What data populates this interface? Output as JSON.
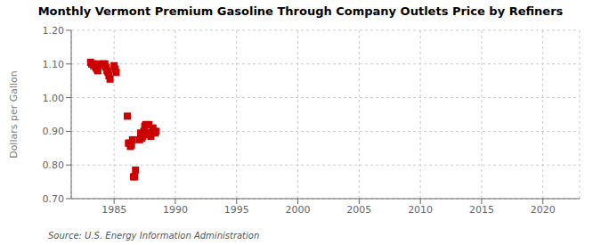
{
  "chart_data": {
    "type": "scatter",
    "title": "Monthly Vermont Premium Gasoline Through Company Outlets Price by Refiners",
    "ylabel": "Dollars per Gallon",
    "annotation": "Source: U.S. Energy Information Administration",
    "x": [
      1983.08,
      1983.17,
      1983.25,
      1983.33,
      1983.42,
      1983.5,
      1983.58,
      1983.67,
      1983.75,
      1983.83,
      1984.08,
      1984.17,
      1984.25,
      1984.33,
      1984.42,
      1984.5,
      1984.58,
      1984.67,
      1985.0,
      1985.08,
      1985.17,
      1986.08,
      1986.17,
      1986.25,
      1986.33,
      1986.42,
      1986.5,
      1986.58,
      1986.67,
      1986.75,
      1987.08,
      1987.17,
      1987.25,
      1987.33,
      1987.42,
      1987.5,
      1987.58,
      1987.67,
      1987.75,
      1987.83,
      1988.0,
      1988.08,
      1988.17,
      1988.25,
      1988.33,
      1988.42
    ],
    "values": [
      1.105,
      1.1,
      1.1,
      1.095,
      1.1,
      1.09,
      1.085,
      1.08,
      1.1,
      1.095,
      1.1,
      1.1,
      1.1,
      1.09,
      1.08,
      1.075,
      1.065,
      1.055,
      1.095,
      1.085,
      1.075,
      0.945,
      0.865,
      0.865,
      0.855,
      0.86,
      0.875,
      0.765,
      0.765,
      0.785,
      0.875,
      0.895,
      0.88,
      0.885,
      0.9,
      0.915,
      0.92,
      0.89,
      0.895,
      0.92,
      0.885,
      0.895,
      0.91,
      0.9,
      0.895,
      0.9
    ],
    "color": "#cc0000",
    "marker": "square",
    "xlim": [
      1981.5,
      2023
    ],
    "xticks": [
      1985,
      1990,
      1995,
      2000,
      2005,
      2010,
      2015,
      2020
    ],
    "ylim": [
      0.7,
      1.2
    ],
    "yticks": [
      {
        "value": 0.7,
        "label": "0.70"
      },
      {
        "value": 0.8,
        "label": "0.80"
      },
      {
        "value": 0.9,
        "label": "0.90"
      },
      {
        "value": 1.0,
        "label": "1.00"
      },
      {
        "value": 1.1,
        "label": "1.10"
      },
      {
        "value": 1.2,
        "label": "1.20"
      }
    ],
    "grid": true
  }
}
